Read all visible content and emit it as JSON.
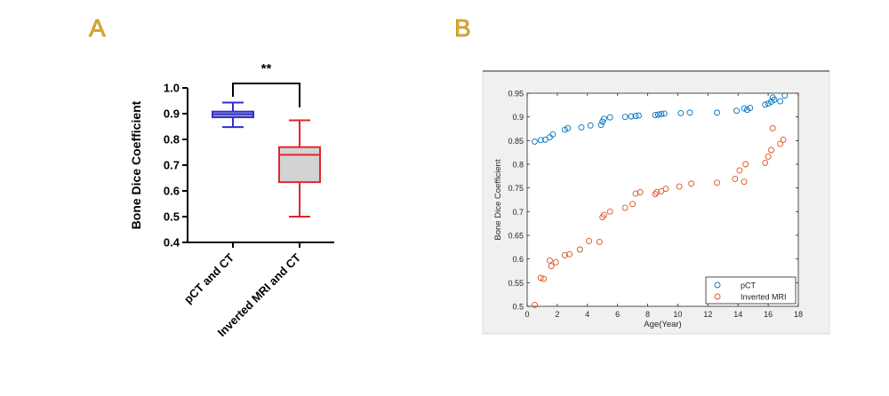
{
  "panels": {
    "a_label": "A",
    "b_label": "B"
  },
  "chart_data": [
    {
      "type": "box",
      "panel": "A",
      "ylabel": "Bone Dice Coefficient",
      "xlabel": "",
      "ylim": [
        0.4,
        1.0
      ],
      "yticks": [
        0.4,
        0.5,
        0.6,
        0.7,
        0.8,
        0.9,
        1.0
      ],
      "ytick_labels": [
        "0.4",
        "0.5",
        "0.6",
        "0.7",
        "0.8",
        "0.9",
        "1.0"
      ],
      "categories": [
        "pCT and CT",
        "Inverted MRI and CT"
      ],
      "boxes": [
        {
          "name": "pCT and CT",
          "min": 0.848,
          "q1": 0.886,
          "median": 0.898,
          "q3": 0.908,
          "max": 0.943,
          "fill": "#a8a8a8",
          "stroke": "#2f2fd6"
        },
        {
          "name": "Inverted MRI and CT",
          "min": 0.5,
          "q1": 0.634,
          "median": 0.74,
          "q3": 0.77,
          "max": 0.874,
          "fill": "#d3d3d3",
          "stroke": "#e0262c"
        }
      ],
      "significance": "**"
    },
    {
      "type": "scatter",
      "panel": "B",
      "xlabel": "Age(Year)",
      "ylabel": "Bone Dice Coefficient",
      "xlim": [
        0,
        18
      ],
      "ylim": [
        0.5,
        0.95
      ],
      "xticks": [
        0,
        2,
        4,
        6,
        8,
        10,
        12,
        14,
        16,
        18
      ],
      "xtick_labels": [
        "0",
        "2",
        "4",
        "6",
        "8",
        "10",
        "12",
        "14",
        "16",
        "18"
      ],
      "yticks": [
        0.5,
        0.55,
        0.6,
        0.65,
        0.7,
        0.75,
        0.8,
        0.85,
        0.9,
        0.95
      ],
      "ytick_labels": [
        "0.5",
        "0.55",
        "0.6",
        "0.65",
        "0.7",
        "0.75",
        "0.8",
        "0.85",
        "0.9",
        "0.95"
      ],
      "legend_position": "bottom-right",
      "series": [
        {
          "name": "pCT",
          "color": "#0072bd",
          "x": [
            0.5,
            0.9,
            1.2,
            1.5,
            1.7,
            2.5,
            2.7,
            3.6,
            4.2,
            4.9,
            5.0,
            5.1,
            5.5,
            6.5,
            6.9,
            7.2,
            7.4,
            8.5,
            8.7,
            8.9,
            9.1,
            10.2,
            10.8,
            12.6,
            13.9,
            14.4,
            14.6,
            14.8,
            15.8,
            16.0,
            16.2,
            16.3,
            16.4,
            16.8,
            17.1
          ],
          "y": [
            0.848,
            0.851,
            0.852,
            0.857,
            0.863,
            0.873,
            0.876,
            0.878,
            0.882,
            0.883,
            0.89,
            0.896,
            0.899,
            0.9,
            0.901,
            0.902,
            0.903,
            0.904,
            0.905,
            0.906,
            0.907,
            0.908,
            0.909,
            0.909,
            0.913,
            0.918,
            0.915,
            0.919,
            0.926,
            0.928,
            0.932,
            0.941,
            0.936,
            0.933,
            0.945
          ]
        },
        {
          "name": "Inverted MRI",
          "color": "#d95319",
          "x": [
            0.5,
            0.9,
            1.1,
            1.5,
            1.6,
            1.9,
            2.5,
            2.8,
            3.5,
            4.1,
            4.8,
            5.0,
            5.1,
            5.5,
            6.5,
            7.0,
            7.2,
            7.5,
            8.5,
            8.6,
            8.9,
            9.2,
            10.1,
            10.9,
            12.6,
            13.8,
            14.1,
            14.4,
            14.5,
            15.8,
            16.0,
            16.2,
            16.3,
            16.8,
            17.0
          ],
          "y": [
            0.503,
            0.56,
            0.558,
            0.597,
            0.585,
            0.593,
            0.608,
            0.61,
            0.62,
            0.638,
            0.636,
            0.688,
            0.693,
            0.7,
            0.708,
            0.716,
            0.738,
            0.741,
            0.737,
            0.741,
            0.743,
            0.748,
            0.753,
            0.759,
            0.761,
            0.769,
            0.787,
            0.763,
            0.8,
            0.803,
            0.816,
            0.83,
            0.876,
            0.843,
            0.852
          ]
        }
      ]
    }
  ]
}
